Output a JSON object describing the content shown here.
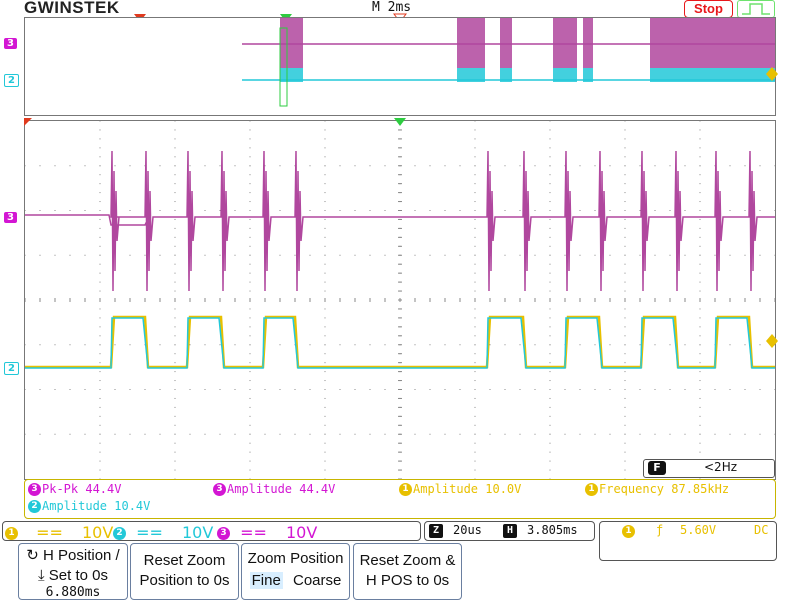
{
  "brand": "GWINSTEK",
  "timebase": "M 2ms",
  "run_state": "Stop",
  "channel_markers": {
    "ch3": "3",
    "ch2": "2"
  },
  "frequency_counter": {
    "icon": "F",
    "value": "<2Hz"
  },
  "measurements": [
    {
      "channel": "3",
      "text": "Pk-Pk 44.4V",
      "color": "#d316d3"
    },
    {
      "channel": "3",
      "text": "Amplitude 44.4V",
      "color": "#d316d3"
    },
    {
      "channel": "1",
      "text": "Amplitude 10.0V",
      "color": "#e8c000"
    },
    {
      "channel": "1",
      "text": "Frequency 87.85kHz",
      "color": "#e8c000"
    },
    {
      "channel": "2",
      "text": "Amplitude 10.4V",
      "color": "#22c8d8"
    }
  ],
  "channels": [
    {
      "id": "1",
      "coupling": "==",
      "scale": "10V",
      "color": "#e8c000"
    },
    {
      "id": "2",
      "coupling": "==",
      "scale": "10V",
      "color": "#22c8d8"
    },
    {
      "id": "3",
      "coupling": "==",
      "scale": "10V",
      "color": "#d316d3"
    }
  ],
  "zoom": {
    "z_icon": "Z",
    "z_value": "20us",
    "h_icon": "H",
    "h_value": "3.805ms"
  },
  "trigger": {
    "source": "1",
    "slope": "ƒ",
    "level": "5.60V",
    "coupling": "DC"
  },
  "softkeys": {
    "hpos": {
      "line1": "H Position /",
      "line2": "Set to 0s",
      "value": "6.880ms"
    },
    "reset_zoom_pos": {
      "line1": "Reset Zoom",
      "line2": "Position to 0s"
    },
    "zoom_position": {
      "title": "Zoom Position",
      "opt_fine": "Fine",
      "opt_coarse": "Coarse"
    },
    "reset_zoom_h": {
      "line1": "Reset Zoom &",
      "line2": "H POS to 0s"
    }
  },
  "colors": {
    "ch1": "#e8c000",
    "ch2": "#22c8d8",
    "ch3": "#b0479e",
    "ch3_label": "#d316d3",
    "grid": "#888888"
  }
}
